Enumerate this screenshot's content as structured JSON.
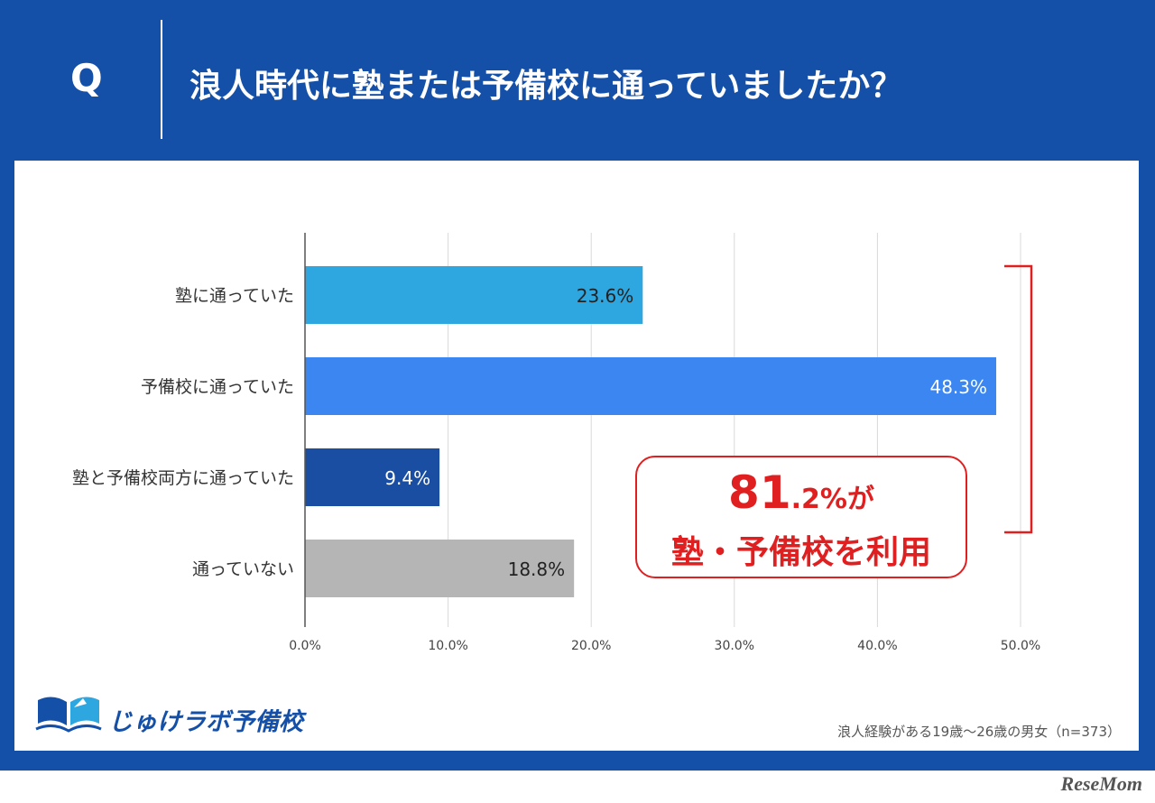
{
  "header": {
    "q_mark": "Q",
    "question": "浪人時代に塾または予備校に通っていましたか？"
  },
  "chart_data": {
    "type": "bar",
    "orientation": "horizontal",
    "categories": [
      "塾に通っていた",
      "予備校に通っていた",
      "塾と予備校両方に通っていた",
      "通っていない"
    ],
    "values": [
      23.6,
      48.3,
      9.4,
      18.8
    ],
    "value_labels": [
      "23.6%",
      "48.3%",
      "9.4%",
      "18.8%"
    ],
    "colors": [
      "#2ea6e0",
      "#3b86f0",
      "#1a4ea2",
      "#b5b5b5"
    ],
    "label_colors": [
      "#222222",
      "#ffffff",
      "#ffffff",
      "#222222"
    ],
    "xlim": [
      0,
      50
    ],
    "xticks": [
      0,
      10,
      20,
      30,
      40,
      50
    ],
    "xtick_labels": [
      "0.0%",
      "10.0%",
      "20.0%",
      "30.0%",
      "40.0%",
      "50.0%"
    ],
    "grid": true,
    "gridline_color": "#d9d9d9",
    "bracket_color": "#e02020"
  },
  "callout": {
    "big": "81",
    "small": ".2%が",
    "line2": "塾・予備校を利用"
  },
  "brand": {
    "name": "じゅけラボ予備校",
    "logo_icon": "open-book-logo-icon"
  },
  "footnote": "浪人経験がある19歳～26歳の男女（n=373）",
  "watermark": "ReseMom",
  "theme": {
    "primary": "#1550a8",
    "accent": "#e02020"
  }
}
